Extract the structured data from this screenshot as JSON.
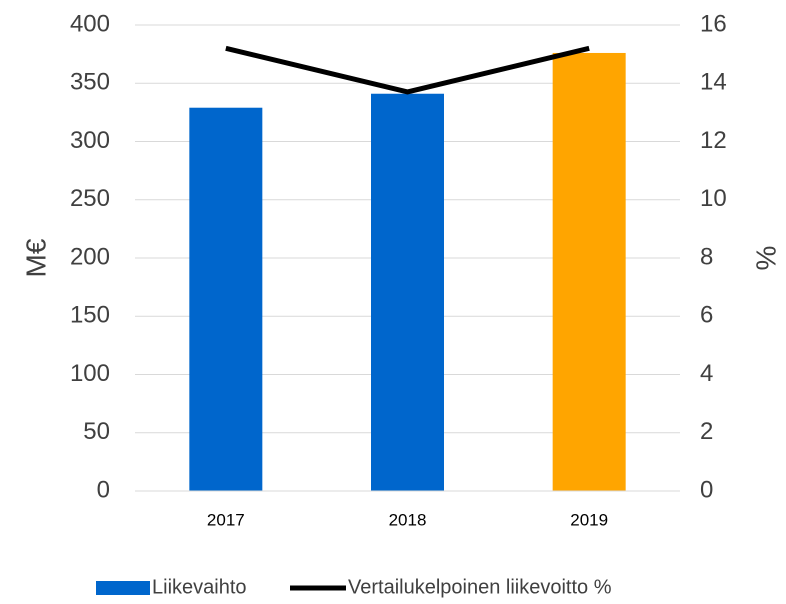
{
  "chart_data": {
    "type": "bar_line",
    "categories": [
      "2017",
      "2018",
      "2019"
    ],
    "series": [
      {
        "name": "Liikevaihto",
        "type": "bar",
        "color": "#0066cc",
        "point_colors": [
          "#0066cc",
          "#0066cc",
          "#ffa500"
        ],
        "values": [
          329,
          341,
          376
        ]
      },
      {
        "name": "Vertailukelpoinen liikevoitto %",
        "type": "line",
        "axis": "y2",
        "color": "#000000",
        "values": [
          15.2,
          13.7,
          15.2
        ]
      }
    ],
    "ylabel": "M€",
    "y2label": "%",
    "ylim": [
      0,
      400
    ],
    "yticks": [
      0,
      50,
      100,
      150,
      200,
      250,
      300,
      350,
      400
    ],
    "y2lim": [
      0,
      16
    ],
    "y2ticks": [
      0,
      2,
      4,
      6,
      8,
      10,
      12,
      14,
      16
    ],
    "grid": true,
    "legend": "bottom"
  }
}
